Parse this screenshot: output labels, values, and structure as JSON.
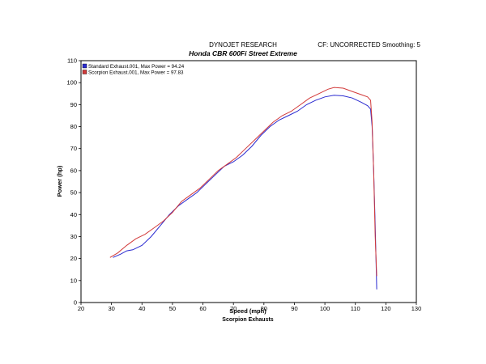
{
  "header": {
    "company": "DYNOJET RESEARCH",
    "title": "Honda CBR 600Fi Street Extreme",
    "cf_info": "CF: UNCORRECTED  Smoothing: 5",
    "footer": "Scorpion Exhausts"
  },
  "chart_data": {
    "type": "line",
    "xlabel": "Speed (mph)",
    "ylabel": "Power (hp)",
    "xlim": [
      20,
      130
    ],
    "ylim": [
      0,
      110
    ],
    "xticks": [
      20,
      30,
      40,
      50,
      60,
      70,
      80,
      90,
      100,
      110,
      120,
      130
    ],
    "yticks": [
      0,
      10,
      20,
      30,
      40,
      50,
      60,
      70,
      80,
      90,
      100,
      110
    ],
    "grid": false,
    "legend_position": "top-left",
    "series": [
      {
        "name": "Standard Exhaust.001, Max Power = 94.24",
        "color": "#2a2ad0",
        "points": [
          [
            30.5,
            20.5
          ],
          [
            33,
            22
          ],
          [
            35,
            23.5
          ],
          [
            37,
            24
          ],
          [
            40,
            26
          ],
          [
            43,
            30
          ],
          [
            46,
            35
          ],
          [
            49,
            40
          ],
          [
            52,
            44
          ],
          [
            55,
            47
          ],
          [
            58,
            50
          ],
          [
            61,
            54
          ],
          [
            64,
            58
          ],
          [
            67,
            62
          ],
          [
            70,
            64
          ],
          [
            73,
            67
          ],
          [
            76,
            71
          ],
          [
            79,
            76
          ],
          [
            82,
            80
          ],
          [
            85,
            83
          ],
          [
            88,
            85
          ],
          [
            91,
            87
          ],
          [
            94,
            90
          ],
          [
            97,
            92
          ],
          [
            100,
            93.5
          ],
          [
            103,
            94.24
          ],
          [
            106,
            94
          ],
          [
            109,
            93
          ],
          [
            112,
            91
          ],
          [
            114,
            89.5
          ],
          [
            115,
            88
          ],
          [
            115.5,
            80
          ],
          [
            116,
            60
          ],
          [
            116.5,
            35
          ],
          [
            117,
            6
          ]
        ]
      },
      {
        "name": "Scorpion Exhaust.001, Max Power = 97.83",
        "color": "#d23a3a",
        "points": [
          [
            29.5,
            20.5
          ],
          [
            32,
            22.5
          ],
          [
            35,
            26
          ],
          [
            38,
            29
          ],
          [
            41,
            31
          ],
          [
            44,
            34
          ],
          [
            47,
            37
          ],
          [
            50,
            41
          ],
          [
            53,
            46
          ],
          [
            56,
            49
          ],
          [
            59,
            52
          ],
          [
            62,
            56
          ],
          [
            65,
            60
          ],
          [
            68,
            63
          ],
          [
            71,
            66
          ],
          [
            74,
            70
          ],
          [
            77,
            74
          ],
          [
            80,
            78
          ],
          [
            83,
            82
          ],
          [
            86,
            85
          ],
          [
            89,
            87
          ],
          [
            92,
            90
          ],
          [
            95,
            93
          ],
          [
            98,
            95
          ],
          [
            101,
            97
          ],
          [
            103,
            97.83
          ],
          [
            106,
            97.5
          ],
          [
            109,
            96
          ],
          [
            112,
            94.5
          ],
          [
            114,
            93.5
          ],
          [
            115,
            92
          ],
          [
            115.5,
            82
          ],
          [
            116,
            60
          ],
          [
            116.5,
            30
          ],
          [
            117,
            12
          ]
        ]
      }
    ]
  }
}
